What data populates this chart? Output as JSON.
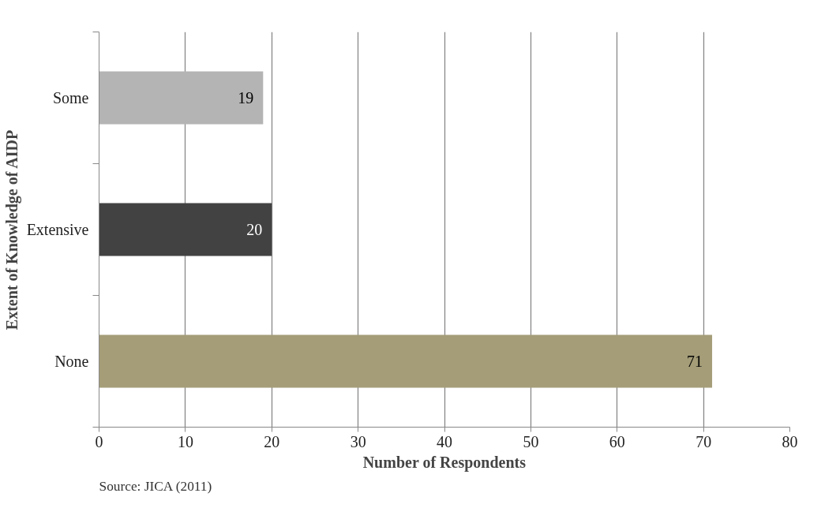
{
  "chart_data": {
    "type": "bar",
    "orientation": "horizontal",
    "xlabel": "Number of Respondents",
    "ylabel": "Extent of Knowledge of AIDP",
    "categories": [
      "Some",
      "Extensive",
      "None"
    ],
    "values": [
      19,
      20,
      71
    ],
    "colors": [
      "#b4b4b4",
      "#424242",
      "#a49d78"
    ],
    "xlim": [
      0,
      80
    ],
    "xticks": [
      0,
      10,
      20,
      30,
      40,
      50,
      60,
      70,
      80
    ],
    "grid": "x",
    "data_labels": true,
    "annotations": [
      "Source: JICA (2011)"
    ]
  }
}
